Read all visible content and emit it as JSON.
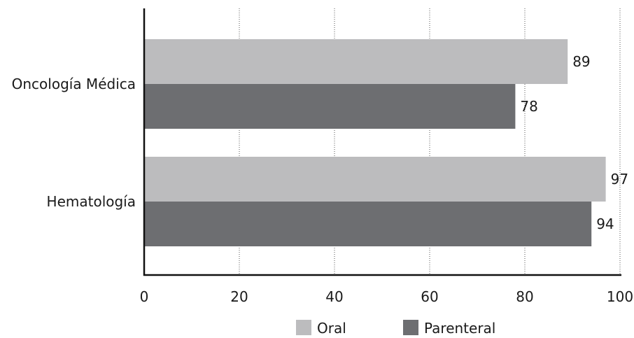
{
  "chart_data": {
    "type": "bar",
    "orientation": "horizontal",
    "categories": [
      "Oncología Médica",
      "Hematología"
    ],
    "series": [
      {
        "name": "Oral",
        "values": [
          89,
          97
        ],
        "color": "#bcbcbe"
      },
      {
        "name": "Parenteral",
        "values": [
          78,
          94
        ],
        "color": "#6d6e71"
      }
    ],
    "xlim": [
      0,
      100
    ],
    "xticks": [
      0,
      20,
      40,
      60,
      80,
      100
    ],
    "grid": {
      "vertical": true,
      "style": "dotted"
    },
    "legend": "bottom-center",
    "title": "",
    "xlabel": "",
    "ylabel": ""
  }
}
